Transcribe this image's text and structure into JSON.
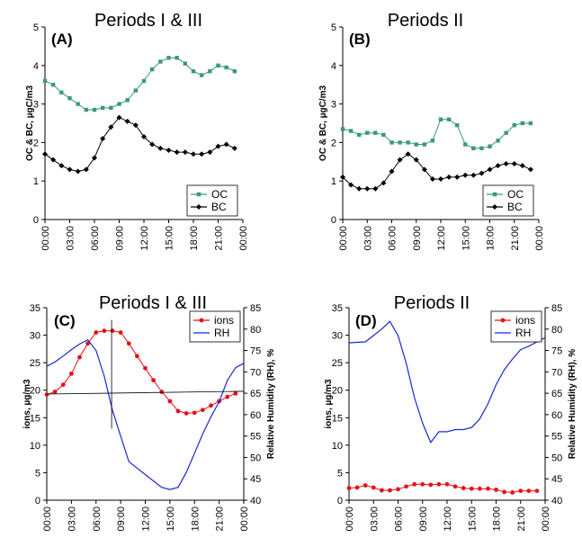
{
  "chart_data": [
    {
      "type": "line",
      "panel_label": "(A)",
      "title": "Periods I & III",
      "ylabel": "OC & BC, µgC/m3",
      "ylim": [
        0,
        5
      ],
      "yticks": [
        "0",
        "1",
        "2",
        "3",
        "4",
        "5"
      ],
      "xticks": [
        "00:00",
        "03:00",
        "06:00",
        "09:00",
        "12:00",
        "15:00",
        "18:00",
        "21:00",
        "00:00"
      ],
      "x_hours": [
        0,
        1,
        2,
        3,
        4,
        5,
        6,
        7,
        8,
        9,
        10,
        11,
        12,
        13,
        14,
        15,
        16,
        17,
        18,
        19,
        20,
        21,
        22,
        23,
        24
      ],
      "legend_position": "bottom-right",
      "series": [
        {
          "name": "OC",
          "color": "#3a9a78",
          "marker": "square",
          "values": [
            3.6,
            3.5,
            3.3,
            3.15,
            3.0,
            2.85,
            2.85,
            2.9,
            2.9,
            3.0,
            3.1,
            3.35,
            3.6,
            3.9,
            4.1,
            4.2,
            4.2,
            4.05,
            3.85,
            3.75,
            3.85,
            4.0,
            3.95,
            3.85
          ]
        },
        {
          "name": "BC",
          "color": "#000000",
          "marker": "diamond",
          "values": [
            1.7,
            1.55,
            1.4,
            1.3,
            1.25,
            1.3,
            1.6,
            2.1,
            2.4,
            2.65,
            2.55,
            2.45,
            2.15,
            1.95,
            1.85,
            1.8,
            1.75,
            1.75,
            1.7,
            1.7,
            1.75,
            1.9,
            1.95,
            1.85
          ]
        }
      ]
    },
    {
      "type": "line",
      "panel_label": "(B)",
      "title": "Periods II",
      "ylabel": "OC & BC, µgC/m3",
      "ylim": [
        0,
        5
      ],
      "yticks": [
        "0",
        "1",
        "2",
        "3",
        "4",
        "5"
      ],
      "xticks": [
        "00:00",
        "03:00",
        "06:00",
        "09:00",
        "12:00",
        "15:00",
        "18:00",
        "21:00",
        "00:00"
      ],
      "legend_position": "bottom-right",
      "series": [
        {
          "name": "OC",
          "color": "#3a9a78",
          "marker": "square",
          "values": [
            2.35,
            2.3,
            2.2,
            2.25,
            2.25,
            2.2,
            2.0,
            2.0,
            2.0,
            1.95,
            1.95,
            2.05,
            2.6,
            2.6,
            2.45,
            1.95,
            1.85,
            1.85,
            1.9,
            2.05,
            2.25,
            2.45,
            2.5,
            2.5
          ]
        },
        {
          "name": "BC",
          "color": "#000000",
          "marker": "diamond",
          "values": [
            1.1,
            0.9,
            0.8,
            0.8,
            0.8,
            0.95,
            1.25,
            1.55,
            1.7,
            1.55,
            1.3,
            1.05,
            1.05,
            1.1,
            1.1,
            1.15,
            1.15,
            1.2,
            1.3,
            1.4,
            1.45,
            1.45,
            1.4,
            1.3
          ]
        }
      ]
    },
    {
      "type": "line",
      "panel_label": "(C)",
      "title": "Periods I & III",
      "ylabel": "ions, µg/m3",
      "y2label": "Relative Humidity (RH), %",
      "ylim": [
        0,
        35
      ],
      "y2lim": [
        40,
        85
      ],
      "yticks": [
        "0",
        "5",
        "10",
        "15",
        "20",
        "25",
        "30",
        "35"
      ],
      "y2ticks": [
        "40",
        "45",
        "50",
        "55",
        "60",
        "65",
        "70",
        "75",
        "80",
        "85"
      ],
      "xticks": [
        "00:00",
        "03:00",
        "06:00",
        "09:00",
        "12:00",
        "15:00",
        "18:00",
        "21:00",
        "00:00"
      ],
      "legend_position": "top-right",
      "series": [
        {
          "name": "ions",
          "color": "#e8101a",
          "marker": "circle",
          "axis": "left",
          "values": [
            19.2,
            19.7,
            21.0,
            23.0,
            26.0,
            28.5,
            30.5,
            30.8,
            30.8,
            30.5,
            28.5,
            26.2,
            24.0,
            21.8,
            19.7,
            18.0,
            16.2,
            15.8,
            15.9,
            16.4,
            17.2,
            18.0,
            18.8,
            19.4
          ]
        },
        {
          "name": "RH",
          "color": "#1628d6",
          "marker": "none",
          "axis": "right",
          "hours": [
            0,
            1,
            2,
            3,
            4,
            5,
            6,
            7,
            8,
            9,
            10,
            11,
            12,
            13,
            14,
            15,
            16,
            17,
            18,
            19,
            20,
            21,
            22,
            23,
            24
          ],
          "values": [
            71.3,
            72.3,
            73.7,
            75.2,
            76.5,
            77.5,
            75,
            69,
            61,
            55,
            49,
            47.5,
            46,
            44.5,
            43,
            42.5,
            43,
            46.5,
            51,
            55.5,
            59.5,
            63,
            68,
            71,
            72
          ]
        }
      ]
    },
    {
      "type": "line",
      "panel_label": "(D)",
      "title": "Periods II",
      "ylabel": "ions, µg/m3",
      "y2label": "Relative Humidity (RH), %",
      "ylim": [
        0,
        35
      ],
      "y2lim": [
        40,
        85
      ],
      "yticks": [
        "0",
        "5",
        "10",
        "15",
        "20",
        "25",
        "30",
        "35"
      ],
      "y2ticks": [
        "40",
        "45",
        "50",
        "55",
        "60",
        "65",
        "70",
        "75",
        "80",
        "85"
      ],
      "xticks": [
        "00:00",
        "03:00",
        "06:00",
        "09:00",
        "12:00",
        "15:00",
        "18:00",
        "21:00",
        "00:00"
      ],
      "legend_position": "top-right",
      "series": [
        {
          "name": "ions",
          "color": "#e8101a",
          "marker": "circle",
          "axis": "left",
          "values": [
            2.2,
            2.3,
            2.7,
            2.3,
            1.8,
            1.8,
            2.0,
            2.5,
            2.9,
            2.9,
            2.8,
            2.9,
            2.9,
            2.5,
            2.2,
            2.1,
            2.1,
            2.1,
            1.9,
            1.5,
            1.4,
            1.7,
            1.7,
            1.7
          ]
        },
        {
          "name": "RH",
          "color": "#1628d6",
          "marker": "none",
          "axis": "right",
          "hours": [
            0,
            1,
            2,
            3,
            4,
            5,
            6,
            7,
            8,
            9,
            10,
            11,
            12,
            13,
            14,
            15,
            16,
            17,
            18,
            19,
            20,
            21,
            22,
            23,
            24
          ],
          "values": [
            76.8,
            76.9,
            77,
            78.5,
            80,
            81.8,
            78.5,
            72,
            64,
            58,
            53.5,
            56,
            56,
            56.5,
            56.5,
            57,
            59,
            62.5,
            67,
            70.5,
            73,
            75.2,
            76,
            77,
            78
          ]
        }
      ]
    }
  ]
}
